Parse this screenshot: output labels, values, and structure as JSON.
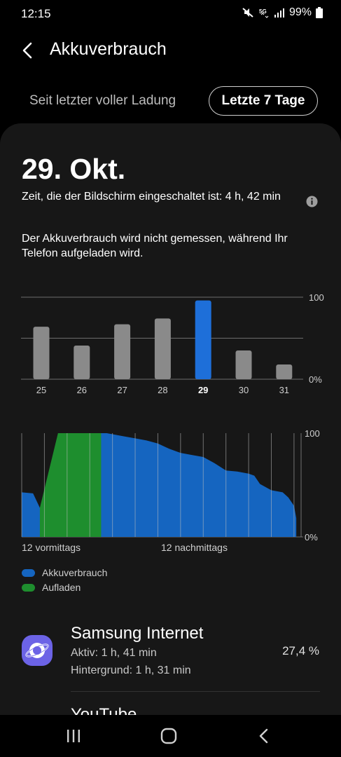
{
  "status_bar": {
    "time": "12:15",
    "network": "5G",
    "battery": "99%",
    "icons": [
      "mute-icon",
      "5g-icon",
      "signal-icon",
      "battery-icon"
    ]
  },
  "header": {
    "title": "Akkuverbrauch",
    "back_icon": "back-arrow-icon"
  },
  "tabs": {
    "items": [
      {
        "label": "Seit letzter voller Ladung",
        "selected": false
      },
      {
        "label": "Letzte 7 Tage",
        "selected": true
      }
    ]
  },
  "detail": {
    "date": "29. Okt.",
    "screen_time": "Zeit, die der Bildschirm eingeschaltet ist: 4 h, 42 min",
    "notice": "Der Akkuverbrauch wird nicht gemessen, während Ihr Telefon aufgeladen wird."
  },
  "colors": {
    "usage": "#1565c0",
    "charging": "#1e8e2e",
    "bar_default": "#8a8a8a",
    "bar_selected": "#1e6fd9"
  },
  "chart_data": [
    {
      "type": "bar",
      "categories": [
        "25",
        "26",
        "27",
        "28",
        "29",
        "30",
        "31"
      ],
      "values": [
        64,
        41,
        67,
        74,
        96,
        35,
        18
      ],
      "selected_category": "29",
      "y_tick_labels": [
        "100",
        "0%"
      ],
      "ylim": [
        0,
        100
      ],
      "grid": true
    },
    {
      "type": "area",
      "x_labels": [
        "12 vormittags",
        "12 nachmittags"
      ],
      "y_tick_labels": [
        "100",
        "0%"
      ],
      "ylim": [
        0,
        100
      ],
      "x_range_hours": [
        0,
        24.5
      ],
      "grid": true,
      "series": [
        {
          "name": "Akkuverbrauch",
          "x": [
            0,
            1.0,
            1.6,
            7.0,
            7.5,
            9.0,
            10.0,
            11.0,
            12.0,
            13.0,
            14.0,
            15.0,
            16.0,
            17.0,
            18.0,
            19.0,
            20.0,
            20.5,
            21.0,
            22.0,
            23.0,
            23.5,
            24.0,
            24.2
          ],
          "y": [
            43,
            42,
            28,
            100,
            100,
            97,
            95,
            93,
            90,
            85,
            81,
            79,
            77,
            71,
            64,
            63,
            61,
            59,
            51,
            45,
            43,
            38,
            30,
            18
          ]
        },
        {
          "name": "Aufladen",
          "x": [
            1.6,
            3.2,
            3.9,
            7.0
          ],
          "y": [
            28,
            100,
            100,
            100
          ]
        }
      ],
      "legend": [
        "Akkuverbrauch",
        "Aufladen"
      ]
    }
  ],
  "apps": [
    {
      "name": "Samsung Internet",
      "active": "Aktiv: 1 h, 41 min",
      "background": "Hintergrund: 1 h, 31 min",
      "percent": "27,4 %",
      "icon": "samsung-internet-icon"
    },
    {
      "name": "YouTube"
    }
  ],
  "nav": {
    "icons": [
      "recents-icon",
      "home-icon",
      "back-icon"
    ]
  }
}
